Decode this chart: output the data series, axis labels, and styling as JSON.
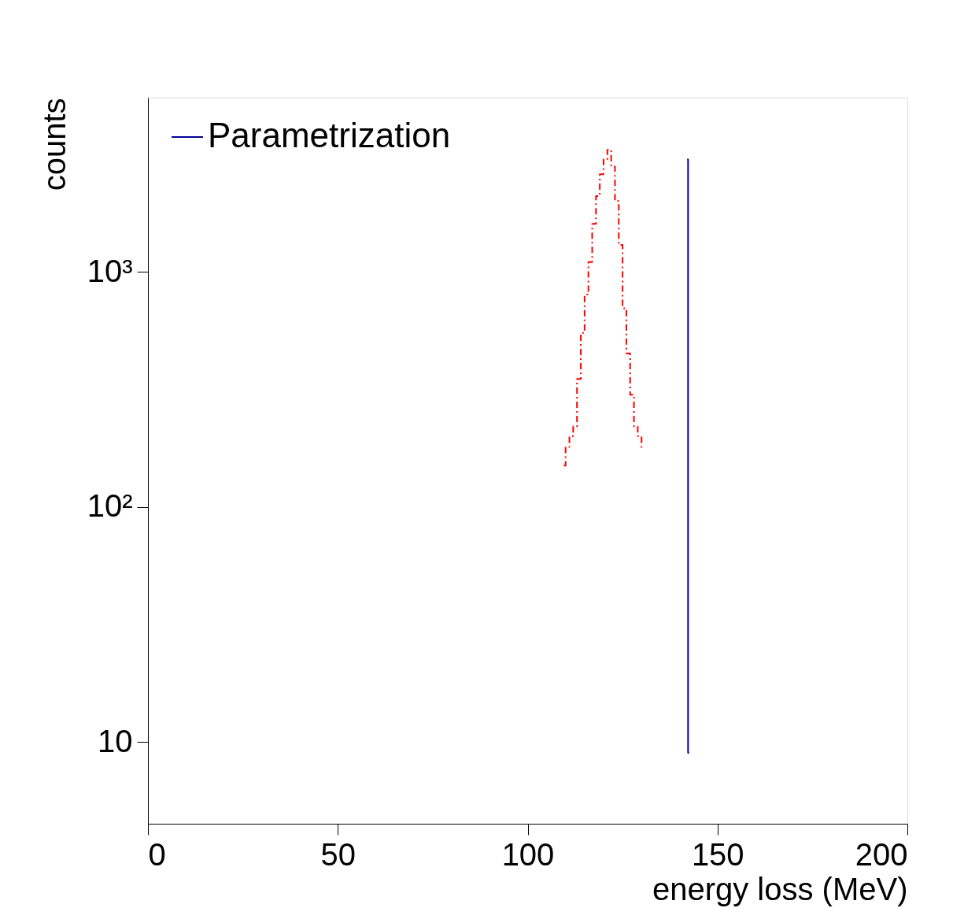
{
  "chart_data": {
    "type": "step",
    "xlabel": "energy loss (MeV)",
    "ylabel": "counts",
    "xlim": [
      0,
      200
    ],
    "xticks": [
      0,
      50,
      100,
      150,
      200
    ],
    "ylim": [
      4.5,
      5500
    ],
    "yticks": [
      {
        "value": 10,
        "label": "10"
      },
      {
        "value": 100,
        "label": "10²"
      },
      {
        "value": 1000,
        "label": "10³"
      }
    ],
    "log": "y",
    "grid": false,
    "legend": "top left",
    "series": [
      {
        "color": "#ff0000",
        "line_style": "dashed",
        "x": [
          109.5,
          110.5,
          111.5,
          112.5,
          113.5,
          114.5,
          115.5,
          116.5,
          117.5,
          118.5,
          119.5,
          120.5,
          121.5,
          122.5,
          123.5,
          124.5,
          125.5,
          126.5,
          127.5,
          128.5,
          129.5,
          130.5
        ],
        "values": [
          150,
          180,
          200,
          220,
          350,
          550,
          800,
          1100,
          1600,
          2100,
          2600,
          3000,
          3300,
          2800,
          2000,
          1300,
          700,
          450,
          300,
          220,
          200,
          180
        ]
      },
      {
        "name": "Parametrization",
        "color": "#000099",
        "line_style": "solid",
        "x": [
          142.0,
          142.5
        ],
        "values": [
          3000,
          9
        ]
      }
    ]
  }
}
